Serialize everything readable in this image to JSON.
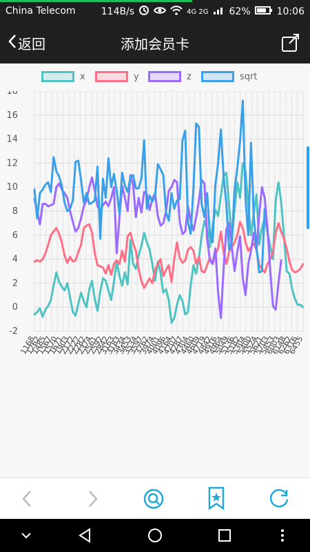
{
  "status_bar": {
    "carrier": "China Telecom",
    "speed": "114B/s",
    "network": "4G 2G",
    "battery": "62%",
    "time": "10:06"
  },
  "header": {
    "back_label": "返回",
    "title": "添加会员卡"
  },
  "chart": {
    "legend": [
      {
        "name": "x",
        "color": "#4fc3c1"
      },
      {
        "name": "y",
        "color": "#ff6f86"
      },
      {
        "name": "z",
        "color": "#9b6bff"
      },
      {
        "name": "sqrt",
        "color": "#3aa0e7"
      }
    ]
  },
  "chart_data": {
    "type": "line",
    "ylim": [
      -2,
      18
    ],
    "yticks": [
      -2,
      0,
      2,
      4,
      6,
      8,
      10,
      12,
      14,
      16,
      18
    ],
    "xlabel": "",
    "ylabel": "",
    "xticklabels": [
      "1168",
      "1262",
      "1485",
      "1567",
      "1570",
      "1671",
      "1903",
      "2172",
      "2227",
      "2282",
      "2374",
      "2561",
      "2592",
      "2842",
      "3163",
      "3183",
      "3434",
      "3453",
      "3534",
      "3597",
      "3762",
      "3974",
      "4001",
      "4096",
      "4164",
      "4207",
      "4287",
      "4304",
      "4460",
      "4609",
      "4719",
      "4842",
      "4916",
      "4964",
      "5049",
      "5136",
      "5182",
      "5304",
      "5400",
      "5524",
      "5621",
      "5703",
      "5853",
      "6003",
      "6148",
      "6262",
      "6316",
      "6455"
    ],
    "series": [
      {
        "name": "x",
        "values": [
          -0.6,
          -0.4,
          -0.1,
          -0.8,
          -0.2,
          0.1,
          0.6,
          1.8,
          2.9,
          2.1,
          1.7,
          1.4,
          2.0,
          0.8,
          -0.4,
          -0.7,
          0.3,
          1.2,
          0.5,
          0.0,
          1.5,
          2.2,
          0.7,
          -0.3,
          1.3,
          2.4,
          2.2,
          1.4,
          0.6,
          2.1,
          3.8,
          2.6,
          1.8,
          2.9,
          1.9,
          5.6,
          3.6,
          3.2,
          4.3,
          5.1,
          6.2,
          5.4,
          4.8,
          3.6,
          2.2,
          3.8,
          2.9,
          1.2,
          1.5,
          0.6,
          -1.3,
          -0.9,
          0.2,
          1.0,
          0.5,
          -0.6,
          -0.4,
          1.8,
          3.5,
          2.8,
          4.1,
          5.9,
          7.2,
          6.5,
          5.0,
          6.8,
          8.1,
          7.6,
          9.3,
          10.9,
          11.2,
          8.4,
          5.9,
          8.1,
          10.4,
          9.1,
          12.0,
          11.3,
          8.5,
          6.0,
          7.8,
          9.4,
          5.2,
          6.6,
          7.5,
          6.2,
          5.1,
          4.0,
          8.9,
          10.4,
          8.8,
          6.0,
          3.0,
          2.8,
          1.5,
          0.7,
          0.2,
          0.2,
          0.0
        ]
      },
      {
        "name": "y",
        "values": [
          3.8,
          3.9,
          3.8,
          4.0,
          4.5,
          5.2,
          6.0,
          6.3,
          6.6,
          6.1,
          5.4,
          4.3,
          3.7,
          4.2,
          3.8,
          3.9,
          4.6,
          5.2,
          6.6,
          6.8,
          6.9,
          6.2,
          4.5,
          3.5,
          3.4,
          3.3,
          2.8,
          3.5,
          2.7,
          3.6,
          3.9,
          3.6,
          4.7,
          3.8,
          5.9,
          6.2,
          5.3,
          4.7,
          3.2,
          2.2,
          1.6,
          2.0,
          2.4,
          2.0,
          3.1,
          3.6,
          4.0,
          2.6,
          3.1,
          3.5,
          2.1,
          4.0,
          5.4,
          4.1,
          3.7,
          3.9,
          4.8,
          5.0,
          4.7,
          3.6,
          4.2,
          3.0,
          2.9,
          3.5,
          4.1,
          3.6,
          4.4,
          4.9,
          6.3,
          4.6,
          3.6,
          4.6,
          5.0,
          5.4,
          6.0,
          7.1,
          6.6,
          5.4,
          4.7,
          5.0,
          5.3,
          4.8,
          3.5,
          3.2,
          2.9,
          3.6,
          4.0,
          4.6,
          6.2,
          7.0,
          6.3,
          5.7,
          4.9,
          3.8,
          3.1,
          2.9,
          3.0,
          3.2,
          3.6
        ]
      },
      {
        "name": "z",
        "values": [
          9.0,
          8.0,
          6.9,
          8.6,
          8.6,
          8.4,
          8.5,
          8.6,
          10.0,
          10.3,
          9.8,
          9.5,
          9.1,
          8.0,
          7.1,
          6.3,
          6.6,
          7.4,
          8.4,
          8.9,
          10.0,
          10.8,
          9.7,
          8.4,
          8.0,
          8.5,
          8.8,
          8.4,
          9.1,
          10.0,
          4.5,
          7.5,
          10.1,
          9.1,
          8.0,
          11.0,
          10.2,
          7.5,
          9.1,
          7.9,
          9.6,
          9.4,
          8.1,
          9.0,
          9.5,
          7.6,
          6.8,
          7.0,
          8.0,
          9.7,
          10.0,
          10.6,
          10.4,
          7.1,
          6.1,
          6.3,
          8.4,
          7.2,
          6.4,
          7.5,
          8.9,
          10.6,
          10.3,
          5.7,
          3.9,
          3.6,
          4.9,
          1.2,
          -0.9,
          3.2,
          6.5,
          7.0,
          5.0,
          3.0,
          4.6,
          5.9,
          2.4,
          1.0,
          3.6,
          4.7,
          6.2,
          4.7,
          7.8,
          10.0,
          9.1,
          6.5,
          3.1,
          0.1,
          -0.2,
          2.0,
          3.9
        ]
      },
      {
        "name": "sqrt",
        "values": [
          9.8,
          7.4,
          9.5,
          9.8,
          10.2,
          10.4,
          9.6,
          12.5,
          11.3,
          10.9,
          10.1,
          8.7,
          8.0,
          8.2,
          8.9,
          12.1,
          12.2,
          10.6,
          8.7,
          9.5,
          8.6,
          8.7,
          8.9,
          11.7,
          5.7,
          10.7,
          9.1,
          12.4,
          10.0,
          11.1,
          9.7,
          7.8,
          11.2,
          10.1,
          9.6,
          10.8,
          11.0,
          9.9,
          9.9,
          10.7,
          13.9,
          8.2,
          9.3,
          8.8,
          9.2,
          11.9,
          11.5,
          11.0,
          7.9,
          7.2,
          9.5,
          8.2,
          8.9,
          9.0,
          13.9,
          14.7,
          7.1,
          6.1,
          9.9,
          15.3,
          15.0,
          8.6,
          7.5,
          9.5,
          6.0,
          5.4,
          10.2,
          12.0,
          14.8,
          10.9,
          8.6,
          4.8,
          5.4,
          9.8,
          11.6,
          13.8,
          17.2,
          9.0,
          6.0,
          13.7,
          7.6,
          5.0,
          2.9,
          3.0,
          8.2
        ]
      }
    ]
  },
  "bottom_bar": {
    "items": [
      "back-arrow",
      "forward-arrow",
      "search",
      "bookmark",
      "refresh"
    ]
  }
}
